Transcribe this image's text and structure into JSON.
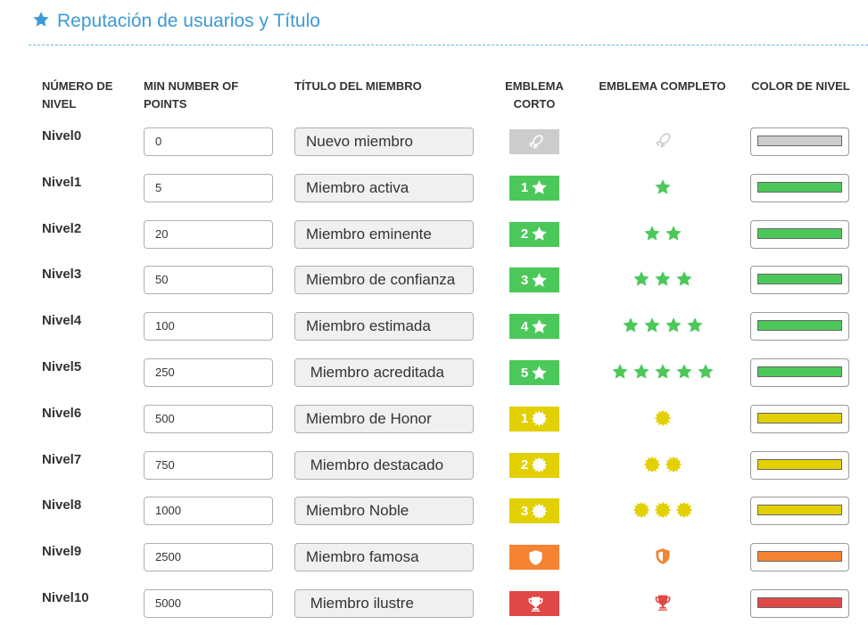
{
  "header": {
    "title": "Reputación de usuarios y Título",
    "icon": "star-icon",
    "color": "#3d9ad6"
  },
  "columns": {
    "level": "NÚMERO DE NIVEL",
    "points": "MIN NUMBER OF POINTS",
    "title": "TÍTULO DEL MIEMBRO",
    "short": "EMBLEMA CORTO",
    "full": "EMBLEMA COMPLETO",
    "color": "COLOR DE NIVEL"
  },
  "levels": [
    {
      "name": "Nivel0",
      "points": "0",
      "title": "Nuevo miembro",
      "short_num": "",
      "icon": "rocket",
      "count": 1,
      "badge_color": "#cccccc",
      "icon_color": "#cccccc",
      "bar_color": "#cccccc"
    },
    {
      "name": "Nivel1",
      "points": "5",
      "title": "Miembro activa",
      "short_num": "1",
      "icon": "star",
      "count": 1,
      "badge_color": "#4cc85a",
      "icon_color": "#4cc85a",
      "bar_color": "#4cc85a"
    },
    {
      "name": "Nivel2",
      "points": "20",
      "title": "Miembro eminente",
      "short_num": "2",
      "icon": "star",
      "count": 2,
      "badge_color": "#4cc85a",
      "icon_color": "#4cc85a",
      "bar_color": "#4cc85a"
    },
    {
      "name": "Nivel3",
      "points": "50",
      "title": "Miembro de confianza",
      "short_num": "3",
      "icon": "star",
      "count": 3,
      "badge_color": "#4cc85a",
      "icon_color": "#4cc85a",
      "bar_color": "#4cc85a"
    },
    {
      "name": "Nivel4",
      "points": "100",
      "title": "Miembro estimada",
      "short_num": "4",
      "icon": "star",
      "count": 4,
      "badge_color": "#4cc85a",
      "icon_color": "#4cc85a",
      "bar_color": "#4cc85a"
    },
    {
      "name": "Nivel5",
      "points": "250",
      "title": " Miembro acreditada",
      "short_num": "5",
      "icon": "star",
      "count": 5,
      "badge_color": "#4cc85a",
      "icon_color": "#4cc85a",
      "bar_color": "#4cc85a"
    },
    {
      "name": "Nivel6",
      "points": "500",
      "title": "Miembro de Honor",
      "short_num": "1",
      "icon": "badge",
      "count": 1,
      "badge_color": "#e2d000",
      "icon_color": "#e2d000",
      "bar_color": "#e2d000"
    },
    {
      "name": "Nivel7",
      "points": "750",
      "title": " Miembro destacado",
      "short_num": "2",
      "icon": "badge",
      "count": 2,
      "badge_color": "#e2d000",
      "icon_color": "#e2d000",
      "bar_color": "#e2d000"
    },
    {
      "name": "Nivel8",
      "points": "1000",
      "title": "Miembro Noble",
      "short_num": "3",
      "icon": "badge",
      "count": 3,
      "badge_color": "#e2d000",
      "icon_color": "#e2d000",
      "bar_color": "#e2d000"
    },
    {
      "name": "Nivel9",
      "points": "2500",
      "title": "Miembro famosa",
      "short_num": "",
      "icon": "shield",
      "count": 1,
      "badge_color": "#f58332",
      "icon_color": "#f58332",
      "bar_color": "#f58332"
    },
    {
      "name": "Nivel10",
      "points": "5000",
      "title": " Miembro ilustre",
      "short_num": "",
      "icon": "trophy",
      "count": 1,
      "badge_color": "#e04848",
      "icon_color": "#e04848",
      "bar_color": "#e04848"
    }
  ]
}
